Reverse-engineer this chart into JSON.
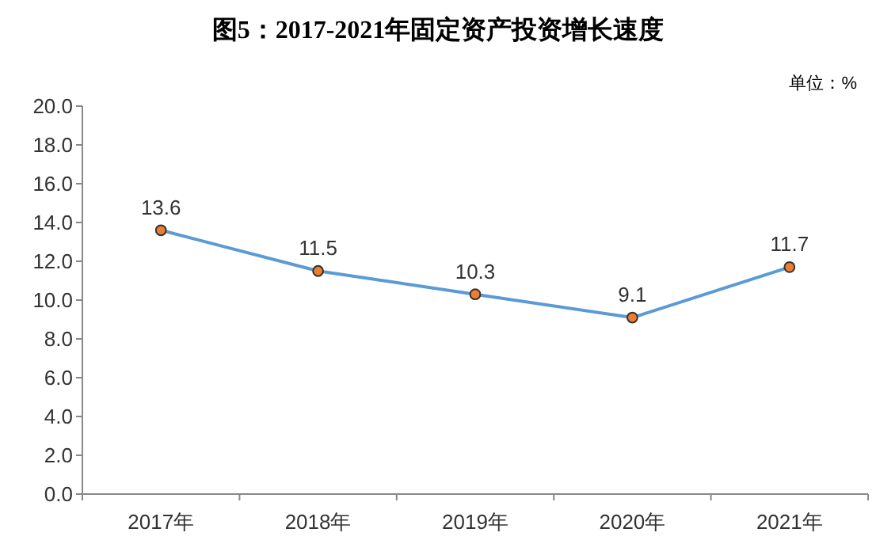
{
  "chart_data": {
    "type": "line",
    "title": "图5：2017-2021年固定资产投资增长速度",
    "annotations": [
      "单位：%"
    ],
    "categories": [
      "2017年",
      "2018年",
      "2019年",
      "2020年",
      "2021年"
    ],
    "series": [
      {
        "color": "#5b9bd5",
        "values": [
          13.6,
          11.5,
          10.3,
          9.1,
          11.7
        ]
      }
    ],
    "ylim": [
      0,
      20
    ],
    "yticks": [
      {
        "value": 0,
        "label": "0.0"
      },
      {
        "value": 2,
        "label": "2.0"
      },
      {
        "value": 4,
        "label": "4.0"
      },
      {
        "value": 6,
        "label": "6.0"
      },
      {
        "value": 8,
        "label": "8.0"
      },
      {
        "value": 10,
        "label": "10.0"
      },
      {
        "value": 12,
        "label": "12.0"
      },
      {
        "value": 14,
        "label": "14.0"
      },
      {
        "value": 16,
        "label": "16.0"
      },
      {
        "value": 18,
        "label": "18.0"
      },
      {
        "value": 20,
        "label": "20.0"
      }
    ],
    "data_labels": true,
    "marker": "circle",
    "line_style": "solid"
  }
}
